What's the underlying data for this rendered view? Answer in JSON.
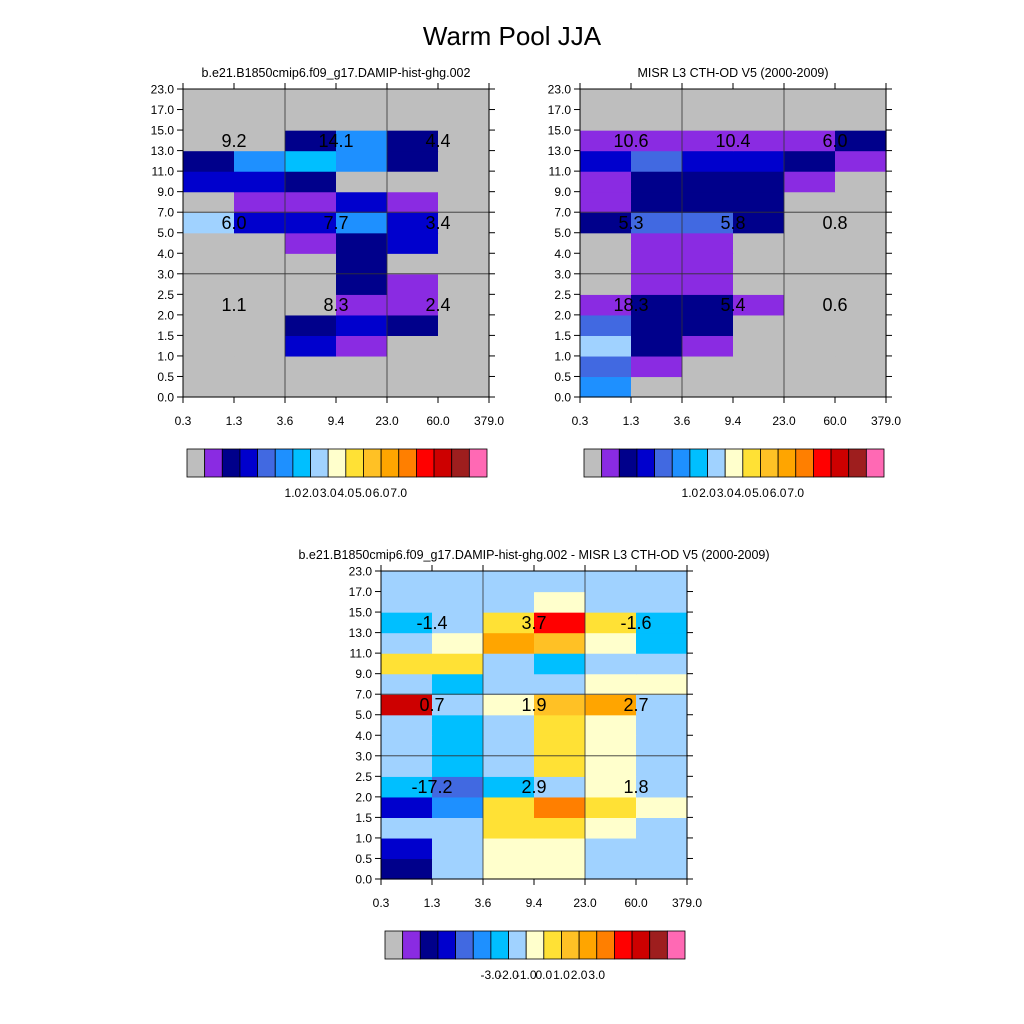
{
  "figure": {
    "title": "Warm Pool JJA"
  },
  "palettes": {
    "abs": [
      "#BEBEBE",
      "#8A2BE2",
      "#00008B",
      "#0000CD",
      "#4169E1",
      "#1E90FF",
      "#00BFFF",
      "#A0D2FF",
      "#FFFFCC",
      "#FFE135",
      "#FFC125",
      "#FFA500",
      "#FF7F00",
      "#FF0000",
      "#CD0000",
      "#9E1E1E",
      "#FF69B4"
    ],
    "diff": [
      "#BEBEBE",
      "#8A2BE2",
      "#00008B",
      "#0000CD",
      "#4169E1",
      "#1E90FF",
      "#00BFFF",
      "#A0D2FF",
      "#FFFFCC",
      "#FFE135",
      "#FFC125",
      "#FFA500",
      "#FF7F00",
      "#FF0000",
      "#CD0000",
      "#9E1E1E",
      "#FF69B4"
    ]
  },
  "chart_data": [
    {
      "type": "heatmap",
      "title": "b.e21.B1850cmip6.f09_g17.DAMIP-hist-ghg.002",
      "xlabel": "",
      "ylabel": "",
      "x_ticks": [
        "0.3",
        "1.3",
        "3.6",
        "9.4",
        "23.0",
        "60.0",
        "379.0"
      ],
      "y_ticks": [
        "0.0",
        "0.5",
        "1.0",
        "1.5",
        "2.0",
        "2.5",
        "3.0",
        "4.0",
        "5.0",
        "7.0",
        "9.0",
        "11.0",
        "13.0",
        "15.0",
        "17.0",
        "23.0"
      ],
      "grid": "on",
      "cell_color_index": [
        [
          0,
          0,
          0,
          0,
          0,
          0
        ],
        [
          0,
          0,
          0,
          0,
          0,
          0
        ],
        [
          0,
          0,
          3,
          1,
          0,
          0
        ],
        [
          0,
          0,
          2,
          3,
          2,
          0
        ],
        [
          0,
          0,
          0,
          1,
          1,
          0
        ],
        [
          0,
          0,
          0,
          2,
          1,
          0
        ],
        [
          0,
          0,
          0,
          2,
          0,
          0
        ],
        [
          0,
          0,
          1,
          2,
          3,
          0
        ],
        [
          7,
          3,
          3,
          5,
          3,
          0
        ],
        [
          0,
          1,
          1,
          3,
          1,
          0
        ],
        [
          3,
          3,
          2,
          0,
          0,
          0
        ],
        [
          2,
          5,
          6,
          5,
          2,
          0
        ],
        [
          0,
          0,
          2,
          5,
          2,
          0
        ],
        [
          0,
          0,
          0,
          0,
          0,
          0
        ],
        [
          0,
          0,
          0,
          0,
          0,
          0
        ]
      ],
      "block_totals": [
        {
          "label": "9.2",
          "cloud_top_height": "high",
          "optical_depth": "thin"
        },
        {
          "label": "14.1",
          "cloud_top_height": "high",
          "optical_depth": "intermediate"
        },
        {
          "label": "4.4",
          "cloud_top_height": "high",
          "optical_depth": "thick"
        },
        {
          "label": "6.0",
          "cloud_top_height": "middle",
          "optical_depth": "thin"
        },
        {
          "label": "7.7",
          "cloud_top_height": "middle",
          "optical_depth": "intermediate"
        },
        {
          "label": "3.4",
          "cloud_top_height": "middle",
          "optical_depth": "thick"
        },
        {
          "label": "1.1",
          "cloud_top_height": "low",
          "optical_depth": "thin"
        },
        {
          "label": "8.3",
          "cloud_top_height": "low",
          "optical_depth": "intermediate"
        },
        {
          "label": "2.4",
          "cloud_top_height": "low",
          "optical_depth": "thick"
        }
      ],
      "colorbar": {
        "palette": "abs",
        "labels": [
          "1.0",
          "2.0",
          "3.0",
          "4.0",
          "5.0",
          "6.0",
          "7.0"
        ]
      }
    },
    {
      "type": "heatmap",
      "title": "MISR L3 CTH-OD V5 (2000-2009)",
      "xlabel": "",
      "ylabel": "",
      "x_ticks": [
        "0.3",
        "1.3",
        "3.6",
        "9.4",
        "23.0",
        "60.0",
        "379.0"
      ],
      "y_ticks": [
        "0.0",
        "0.5",
        "1.0",
        "1.5",
        "2.0",
        "2.5",
        "3.0",
        "4.0",
        "5.0",
        "7.0",
        "9.0",
        "11.0",
        "13.0",
        "15.0",
        "17.0",
        "23.0"
      ],
      "grid": "on",
      "cell_color_index": [
        [
          5,
          0,
          0,
          0,
          0,
          0
        ],
        [
          4,
          1,
          0,
          0,
          0,
          0
        ],
        [
          7,
          2,
          1,
          0,
          0,
          0
        ],
        [
          4,
          2,
          2,
          0,
          0,
          0
        ],
        [
          1,
          2,
          2,
          1,
          0,
          0
        ],
        [
          0,
          1,
          1,
          0,
          0,
          0
        ],
        [
          0,
          1,
          1,
          0,
          0,
          0
        ],
        [
          0,
          1,
          1,
          0,
          0,
          0
        ],
        [
          2,
          4,
          4,
          2,
          0,
          0
        ],
        [
          1,
          2,
          2,
          2,
          0,
          0
        ],
        [
          1,
          2,
          2,
          2,
          1,
          0
        ],
        [
          3,
          4,
          3,
          3,
          2,
          1
        ],
        [
          1,
          1,
          1,
          1,
          1,
          2
        ],
        [
          0,
          0,
          0,
          0,
          0,
          0
        ],
        [
          0,
          0,
          0,
          0,
          0,
          0
        ]
      ],
      "block_totals": [
        {
          "label": "10.6",
          "cloud_top_height": "high",
          "optical_depth": "thin"
        },
        {
          "label": "10.4",
          "cloud_top_height": "high",
          "optical_depth": "intermediate"
        },
        {
          "label": "6.0",
          "cloud_top_height": "high",
          "optical_depth": "thick"
        },
        {
          "label": "5.3",
          "cloud_top_height": "middle",
          "optical_depth": "thin"
        },
        {
          "label": "5.8",
          "cloud_top_height": "middle",
          "optical_depth": "intermediate"
        },
        {
          "label": "0.8",
          "cloud_top_height": "middle",
          "optical_depth": "thick"
        },
        {
          "label": "18.3",
          "cloud_top_height": "low",
          "optical_depth": "thin"
        },
        {
          "label": "5.4",
          "cloud_top_height": "low",
          "optical_depth": "intermediate"
        },
        {
          "label": "0.6",
          "cloud_top_height": "low",
          "optical_depth": "thick"
        }
      ],
      "colorbar": {
        "palette": "abs",
        "labels": [
          "1.0",
          "2.0",
          "3.0",
          "4.0",
          "5.0",
          "6.0",
          "7.0"
        ]
      }
    },
    {
      "type": "heatmap",
      "title": "b.e21.B1850cmip6.f09_g17.DAMIP-hist-ghg.002 - MISR L3 CTH-OD V5 (2000-2009)",
      "xlabel": "",
      "ylabel": "",
      "x_ticks": [
        "0.3",
        "1.3",
        "3.6",
        "9.4",
        "23.0",
        "60.0",
        "379.0"
      ],
      "y_ticks": [
        "0.0",
        "0.5",
        "1.0",
        "1.5",
        "2.0",
        "2.5",
        "3.0",
        "4.0",
        "5.0",
        "7.0",
        "9.0",
        "11.0",
        "13.0",
        "15.0",
        "17.0",
        "23.0"
      ],
      "grid": "on",
      "cell_color_index": [
        [
          2,
          7,
          8,
          8,
          7,
          7
        ],
        [
          3,
          7,
          8,
          8,
          7,
          7
        ],
        [
          7,
          7,
          9,
          9,
          8,
          7
        ],
        [
          3,
          5,
          9,
          12,
          9,
          8
        ],
        [
          6,
          4,
          6,
          7,
          8,
          7
        ],
        [
          7,
          6,
          7,
          9,
          8,
          7
        ],
        [
          7,
          6,
          7,
          9,
          8,
          7
        ],
        [
          7,
          6,
          7,
          9,
          8,
          7
        ],
        [
          14,
          7,
          8,
          10,
          11,
          7
        ],
        [
          7,
          6,
          7,
          7,
          8,
          8
        ],
        [
          9,
          9,
          7,
          6,
          7,
          7
        ],
        [
          7,
          8,
          11,
          10,
          8,
          6
        ],
        [
          6,
          7,
          9,
          13,
          9,
          6
        ],
        [
          7,
          7,
          7,
          8,
          7,
          7
        ],
        [
          7,
          7,
          7,
          7,
          7,
          7
        ]
      ],
      "block_totals": [
        {
          "label": "-1.4",
          "cloud_top_height": "high",
          "optical_depth": "thin"
        },
        {
          "label": "3.7",
          "cloud_top_height": "high",
          "optical_depth": "intermediate"
        },
        {
          "label": "-1.6",
          "cloud_top_height": "high",
          "optical_depth": "thick"
        },
        {
          "label": "0.7",
          "cloud_top_height": "middle",
          "optical_depth": "thin"
        },
        {
          "label": "1.9",
          "cloud_top_height": "middle",
          "optical_depth": "intermediate"
        },
        {
          "label": "2.7",
          "cloud_top_height": "middle",
          "optical_depth": "thick"
        },
        {
          "label": "-17.2",
          "cloud_top_height": "low",
          "optical_depth": "thin"
        },
        {
          "label": "2.9",
          "cloud_top_height": "low",
          "optical_depth": "intermediate"
        },
        {
          "label": "1.8",
          "cloud_top_height": "low",
          "optical_depth": "thick"
        }
      ],
      "colorbar": {
        "palette": "diff",
        "labels": [
          "-3.0",
          "-2.0",
          "-1.0",
          "0.0",
          "1.0",
          "2.0",
          "3.0"
        ]
      }
    }
  ]
}
